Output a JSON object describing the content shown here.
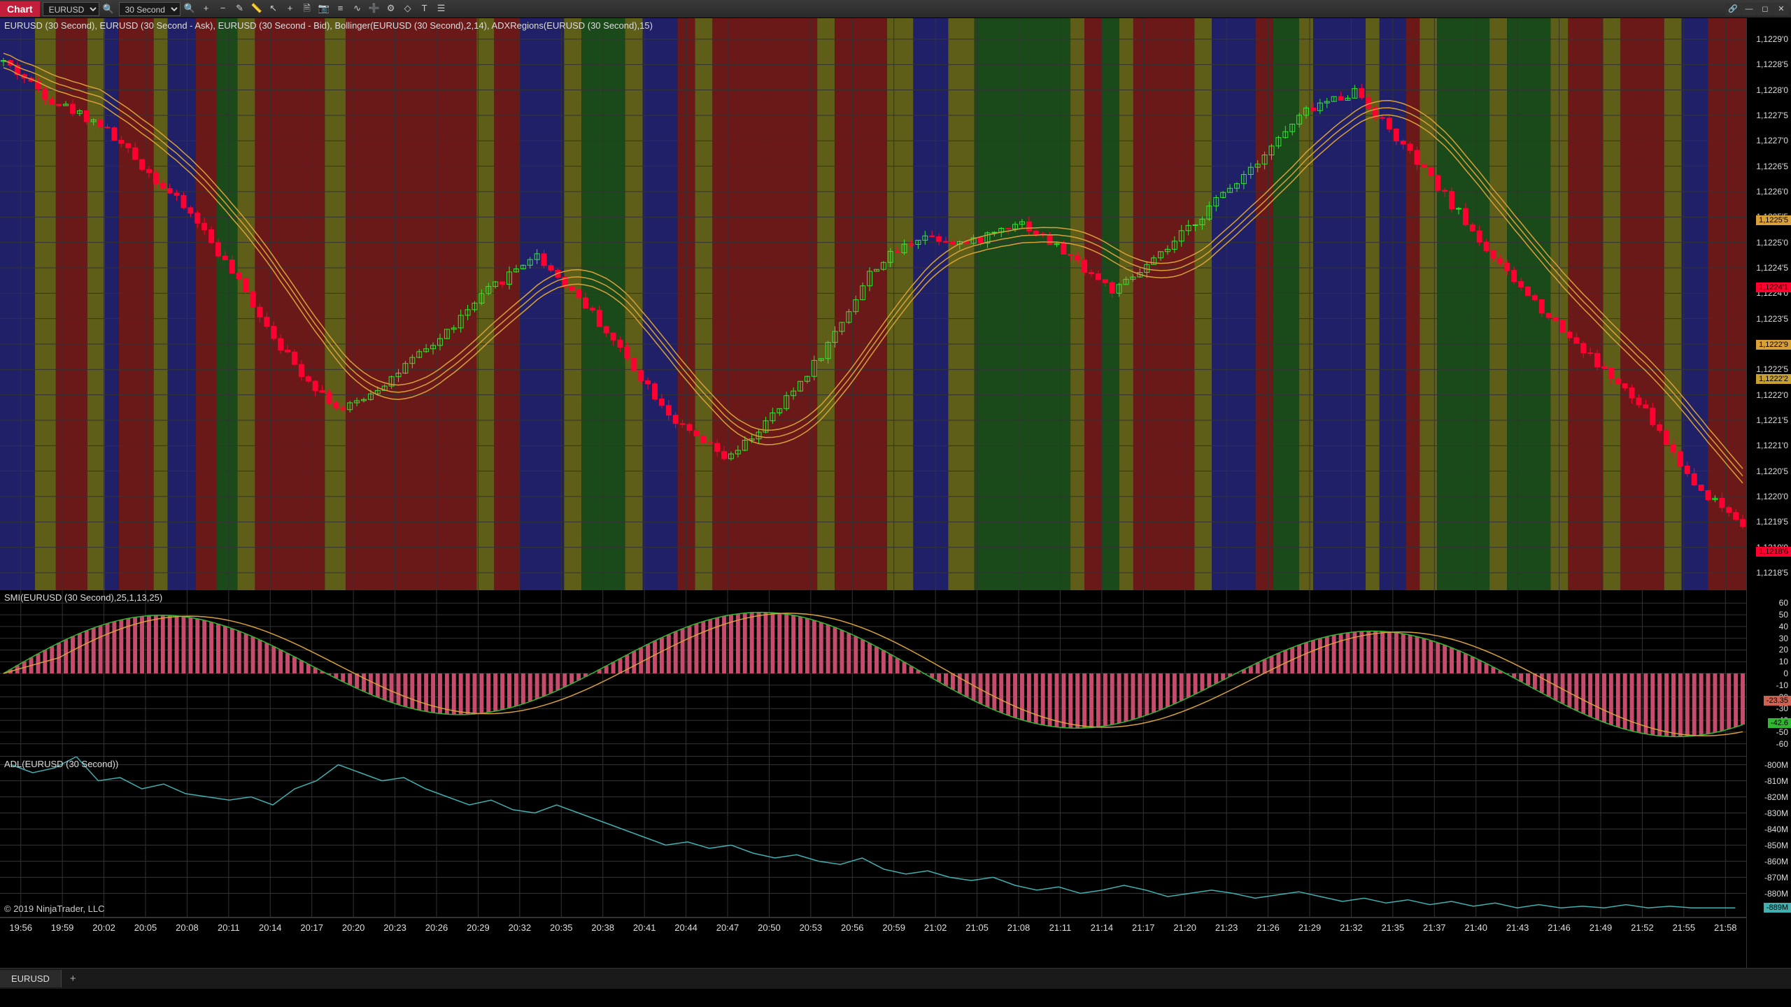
{
  "toolbar": {
    "chart_label": "Chart",
    "instrument": "EURUSD",
    "interval": "30 Second",
    "icons": [
      "search",
      "zoom-in",
      "zoom-out",
      "pencil",
      "ruler",
      "cursor",
      "crosshair",
      "doc",
      "snapshot",
      "data-series",
      "indicator",
      "plus",
      "strategy",
      "drawing",
      "text",
      "properties"
    ]
  },
  "window_controls": [
    "link",
    "minimize",
    "maximize",
    "close"
  ],
  "panels": {
    "main_title": "EURUSD (30 Second), EURUSD (30 Second - Ask), EURUSD (30 Second - Bid), Bollinger(EURUSD (30 Second),2,14), ADXRegions(EURUSD (30 Second),15)",
    "smi_title": "SMI(EURUSD (30 Second),25,1,13,25)",
    "adl_title": "ADL(EURUSD (30 Second))"
  },
  "copyright": "© 2019 NinjaTrader, LLC",
  "tab_label": "EURUSD",
  "colors": {
    "up_candle": "#30e830",
    "down_candle": "#ff0030",
    "bollinger": "#d8a038",
    "grid": "#333333",
    "region_red": "#6b1818",
    "region_green": "#1a4a1a",
    "region_blue": "#202068",
    "region_olive": "#5e5e18",
    "smi_bar": "#c74b6b",
    "smi_green": "#30b830",
    "smi_orange": "#d8a038",
    "adl_line": "#40b0b0"
  },
  "price_axis": {
    "min": 1.12178,
    "max": 1.12297,
    "ticks": [
      "1,1229'0",
      "1,1228'5",
      "1,1228'0",
      "1,1227'5",
      "1,1227'0",
      "1,1226'5",
      "1,1226'0",
      "1,1225'5",
      "1,1225'0",
      "1,1224'5",
      "1,1224'0",
      "1,1223'5",
      "1,1223'0",
      "1,1222'5",
      "1,1222'0",
      "1,1221'5",
      "1,1221'0",
      "1,1220'5",
      "1,1220'0",
      "1,1219'5",
      "1,1219'0",
      "1,1218'5"
    ],
    "markers": [
      {
        "label": "1,1225'5",
        "color": "#d8a038",
        "value": 1.12255
      },
      {
        "label": "1,1224'1",
        "color": "#ff0030",
        "value": 1.12241
      },
      {
        "label": "1,1222'9",
        "color": "#d8a038",
        "value": 1.12229
      },
      {
        "label": "1,1222'2",
        "color": "#c8a030",
        "value": 1.12222
      },
      {
        "label": "1,1218'6",
        "color": "#ff0030",
        "value": 1.12186
      }
    ]
  },
  "smi_axis": {
    "min": -65,
    "max": 65,
    "ticks": [
      60,
      50,
      40,
      30,
      20,
      10,
      0,
      -10,
      -20,
      -30,
      -40,
      -50,
      -60
    ],
    "markers": [
      {
        "label": "-23.35",
        "color": "#d06050",
        "value": -23.35
      },
      {
        "label": "-42.6",
        "color": "#30b830",
        "value": -42.6
      }
    ]
  },
  "adl_axis": {
    "min": -895,
    "max": -795,
    "ticks": [
      "-800M",
      "-810M",
      "-820M",
      "-830M",
      "-840M",
      "-850M",
      "-860M",
      "-870M",
      "-880M"
    ],
    "tick_vals": [
      -800,
      -810,
      -820,
      -830,
      -840,
      -850,
      -860,
      -870,
      -880
    ],
    "markers": [
      {
        "label": "-889M",
        "color": "#40b0b0",
        "value": -889
      }
    ]
  },
  "time_axis": {
    "ticks": [
      "19:56",
      "19:59",
      "20:02",
      "20:05",
      "20:08",
      "20:11",
      "20:14",
      "20:17",
      "20:20",
      "20:23",
      "20:26",
      "20:29",
      "20:32",
      "20:35",
      "20:38",
      "20:41",
      "20:44",
      "20:47",
      "20:50",
      "20:53",
      "20:56",
      "20:59",
      "21:02",
      "21:05",
      "21:08",
      "21:11",
      "21:14",
      "21:17",
      "21:20",
      "21:23",
      "21:26",
      "21:29",
      "21:32",
      "21:35",
      "21:37",
      "21:40",
      "21:43",
      "21:46",
      "21:49",
      "21:52",
      "21:55",
      "21:58"
    ]
  },
  "regions": [
    {
      "c": "region_blue",
      "x": 0.0,
      "w": 0.02
    },
    {
      "c": "region_olive",
      "x": 0.02,
      "w": 0.012
    },
    {
      "c": "region_red",
      "x": 0.032,
      "w": 0.018
    },
    {
      "c": "region_olive",
      "x": 0.05,
      "w": 0.01
    },
    {
      "c": "region_blue",
      "x": 0.06,
      "w": 0.008
    },
    {
      "c": "region_red",
      "x": 0.068,
      "w": 0.02
    },
    {
      "c": "region_olive",
      "x": 0.088,
      "w": 0.008
    },
    {
      "c": "region_blue",
      "x": 0.096,
      "w": 0.016
    },
    {
      "c": "region_red",
      "x": 0.112,
      "w": 0.012
    },
    {
      "c": "region_green",
      "x": 0.124,
      "w": 0.012
    },
    {
      "c": "region_olive",
      "x": 0.136,
      "w": 0.01
    },
    {
      "c": "region_red",
      "x": 0.146,
      "w": 0.04
    },
    {
      "c": "region_olive",
      "x": 0.186,
      "w": 0.012
    },
    {
      "c": "region_red",
      "x": 0.198,
      "w": 0.075
    },
    {
      "c": "region_olive",
      "x": 0.273,
      "w": 0.01
    },
    {
      "c": "region_red",
      "x": 0.283,
      "w": 0.015
    },
    {
      "c": "region_blue",
      "x": 0.298,
      "w": 0.025
    },
    {
      "c": "region_olive",
      "x": 0.323,
      "w": 0.01
    },
    {
      "c": "region_green",
      "x": 0.333,
      "w": 0.025
    },
    {
      "c": "region_olive",
      "x": 0.358,
      "w": 0.01
    },
    {
      "c": "region_blue",
      "x": 0.368,
      "w": 0.02
    },
    {
      "c": "region_red",
      "x": 0.388,
      "w": 0.01
    },
    {
      "c": "region_olive",
      "x": 0.398,
      "w": 0.01
    },
    {
      "c": "region_red",
      "x": 0.408,
      "w": 0.06
    },
    {
      "c": "region_olive",
      "x": 0.468,
      "w": 0.01
    },
    {
      "c": "region_red",
      "x": 0.478,
      "w": 0.03
    },
    {
      "c": "region_olive",
      "x": 0.508,
      "w": 0.015
    },
    {
      "c": "region_blue",
      "x": 0.523,
      "w": 0.02
    },
    {
      "c": "region_olive",
      "x": 0.543,
      "w": 0.015
    },
    {
      "c": "region_green",
      "x": 0.558,
      "w": 0.055
    },
    {
      "c": "region_olive",
      "x": 0.613,
      "w": 0.008
    },
    {
      "c": "region_red",
      "x": 0.621,
      "w": 0.01
    },
    {
      "c": "region_green",
      "x": 0.631,
      "w": 0.01
    },
    {
      "c": "region_olive",
      "x": 0.641,
      "w": 0.008
    },
    {
      "c": "region_red",
      "x": 0.649,
      "w": 0.035
    },
    {
      "c": "region_olive",
      "x": 0.684,
      "w": 0.01
    },
    {
      "c": "region_blue",
      "x": 0.694,
      "w": 0.025
    },
    {
      "c": "region_red",
      "x": 0.719,
      "w": 0.01
    },
    {
      "c": "region_green",
      "x": 0.729,
      "w": 0.015
    },
    {
      "c": "region_olive",
      "x": 0.744,
      "w": 0.008
    },
    {
      "c": "region_blue",
      "x": 0.752,
      "w": 0.03
    },
    {
      "c": "region_olive",
      "x": 0.782,
      "w": 0.008
    },
    {
      "c": "region_blue",
      "x": 0.79,
      "w": 0.015
    },
    {
      "c": "region_red",
      "x": 0.805,
      "w": 0.008
    },
    {
      "c": "region_olive",
      "x": 0.813,
      "w": 0.01
    },
    {
      "c": "region_green",
      "x": 0.823,
      "w": 0.03
    },
    {
      "c": "region_olive",
      "x": 0.853,
      "w": 0.01
    },
    {
      "c": "region_green",
      "x": 0.863,
      "w": 0.025
    },
    {
      "c": "region_olive",
      "x": 0.888,
      "w": 0.01
    },
    {
      "c": "region_red",
      "x": 0.898,
      "w": 0.02
    },
    {
      "c": "region_olive",
      "x": 0.918,
      "w": 0.01
    },
    {
      "c": "region_red",
      "x": 0.928,
      "w": 0.025
    },
    {
      "c": "region_olive",
      "x": 0.953,
      "w": 0.01
    },
    {
      "c": "region_blue",
      "x": 0.963,
      "w": 0.015
    },
    {
      "c": "region_red",
      "x": 0.978,
      "w": 0.022
    }
  ],
  "candles_seed": 42,
  "bollinger_offset": 1.5e-05,
  "smi_seed": 7,
  "adl_data": [
    -800,
    -805,
    -802,
    -795,
    -810,
    -808,
    -815,
    -812,
    -818,
    -820,
    -822,
    -820,
    -825,
    -815,
    -810,
    -800,
    -805,
    -810,
    -808,
    -815,
    -820,
    -825,
    -822,
    -828,
    -830,
    -825,
    -830,
    -835,
    -840,
    -845,
    -850,
    -848,
    -852,
    -850,
    -855,
    -858,
    -856,
    -860,
    -862,
    -858,
    -865,
    -868,
    -866,
    -870,
    -872,
    -870,
    -875,
    -878,
    -876,
    -880,
    -878,
    -875,
    -878,
    -882,
    -880,
    -878,
    -880,
    -883,
    -881,
    -879,
    -882,
    -885,
    -883,
    -886,
    -884,
    -887,
    -885,
    -888,
    -886,
    -889,
    -887,
    -889,
    -888,
    -889,
    -887,
    -889,
    -888,
    -889,
    -889,
    -889
  ]
}
